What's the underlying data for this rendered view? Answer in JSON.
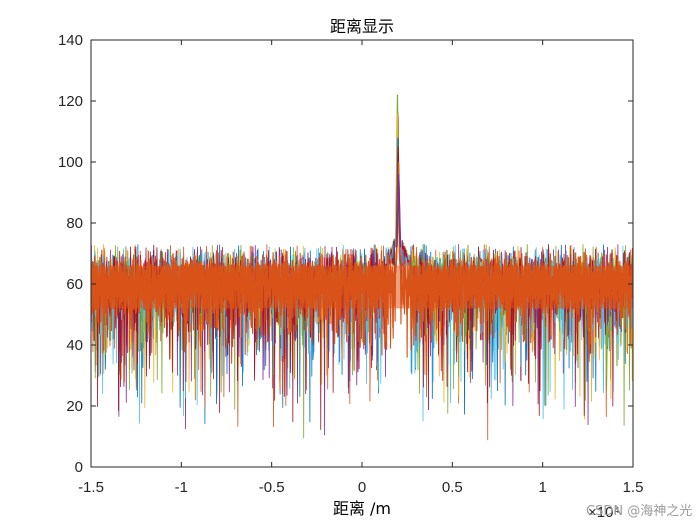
{
  "chart_data": {
    "type": "line",
    "title": "距离显示",
    "xlabel": "距离 /m",
    "ylabel": "",
    "xlim": [
      -1.5,
      1.5
    ],
    "ylim": [
      0,
      140
    ],
    "x_exponent_label": "×10⁴",
    "x_ticks": [
      -1.5,
      -1,
      -0.5,
      0,
      0.5,
      1,
      1.5
    ],
    "x_tick_labels": [
      "-1.5",
      "-1",
      "-0.5",
      "0",
      "0.5",
      "1",
      "1.5"
    ],
    "y_ticks": [
      0,
      20,
      40,
      60,
      80,
      100,
      120,
      140
    ],
    "y_tick_labels": [
      "0",
      "20",
      "40",
      "60",
      "80",
      "100",
      "120",
      "140"
    ],
    "grid": false,
    "legend": "none",
    "noise_floor": {
      "median": 60,
      "typical_max": 73,
      "typical_min": 30,
      "min_observed": 4
    },
    "peak": {
      "x": 0.2,
      "y": 122
    },
    "series_colors": [
      "#0072BD",
      "#D95319",
      "#EDB120",
      "#7E2F8E",
      "#77AC30",
      "#4DBEEE",
      "#A2142F"
    ]
  },
  "watermark": "CSDN @海神之光"
}
